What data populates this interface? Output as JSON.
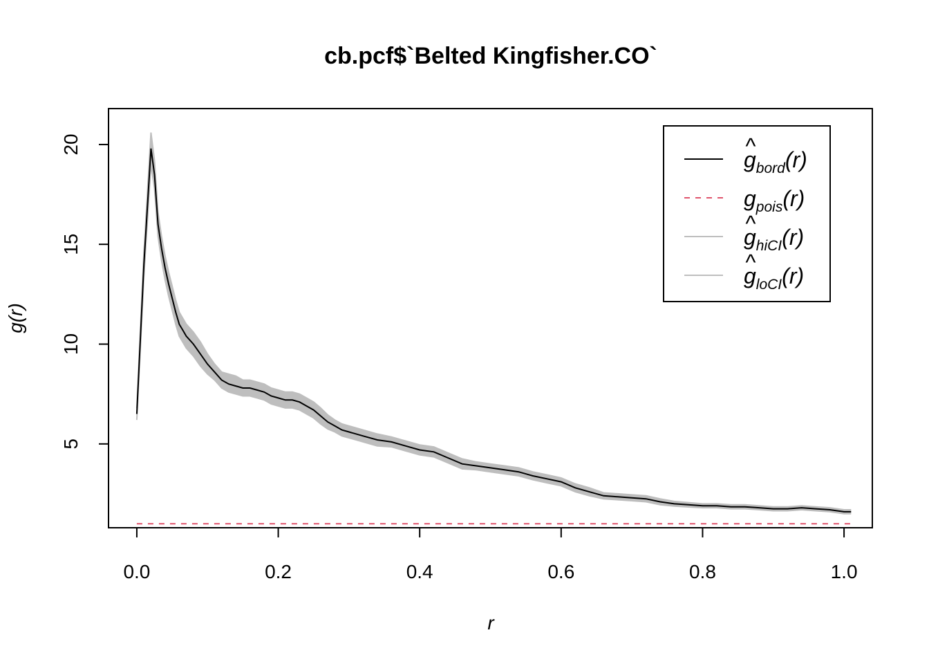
{
  "chart_data": {
    "type": "line",
    "title": "cb.pcf$`Belted Kingfisher.CO`",
    "xlabel": "r",
    "ylabel": "g(r)",
    "xlim": [
      -0.04,
      1.04
    ],
    "ylim": [
      0.8,
      21.8
    ],
    "x_ticks": [
      0.0,
      0.2,
      0.4,
      0.6,
      0.8,
      1.0
    ],
    "x_tick_labels": [
      "0.0",
      "0.2",
      "0.4",
      "0.6",
      "0.8",
      "1.0"
    ],
    "y_ticks": [
      5,
      10,
      15,
      20
    ],
    "y_tick_labels": [
      "5",
      "10",
      "15",
      "20"
    ],
    "grid": false,
    "legend_position": "top-right",
    "legend": [
      {
        "symbol": "g",
        "hat": true,
        "subscript": "bord",
        "arg": "(r)",
        "color": "#000000",
        "dash": "solid"
      },
      {
        "symbol": "g",
        "hat": false,
        "subscript": "pois",
        "arg": "(r)",
        "color": "#DF536B",
        "dash": "dashed"
      },
      {
        "symbol": "g",
        "hat": true,
        "subscript": "hiCI",
        "arg": "(r)",
        "color": "#BEBEBE",
        "dash": "solid"
      },
      {
        "symbol": "g",
        "hat": true,
        "subscript": "loCI",
        "arg": "(r)",
        "color": "#BEBEBE",
        "dash": "solid"
      }
    ],
    "band_color": "#BEBEBE",
    "series": [
      {
        "name": "bord",
        "color": "#000000",
        "x": [
          0.0,
          0.01,
          0.02,
          0.025,
          0.03,
          0.035,
          0.04,
          0.045,
          0.05,
          0.055,
          0.06,
          0.065,
          0.07,
          0.08,
          0.09,
          0.1,
          0.11,
          0.12,
          0.13,
          0.14,
          0.15,
          0.16,
          0.17,
          0.18,
          0.19,
          0.2,
          0.21,
          0.22,
          0.23,
          0.24,
          0.25,
          0.26,
          0.27,
          0.28,
          0.29,
          0.3,
          0.32,
          0.34,
          0.36,
          0.38,
          0.4,
          0.42,
          0.44,
          0.46,
          0.48,
          0.5,
          0.52,
          0.54,
          0.56,
          0.58,
          0.6,
          0.62,
          0.64,
          0.66,
          0.68,
          0.7,
          0.72,
          0.74,
          0.76,
          0.78,
          0.8,
          0.82,
          0.84,
          0.86,
          0.88,
          0.9,
          0.92,
          0.94,
          0.96,
          0.98,
          1.0,
          1.01
        ],
        "values": [
          6.5,
          14.0,
          19.8,
          18.5,
          16.0,
          14.8,
          13.8,
          13.0,
          12.3,
          11.6,
          11.0,
          10.7,
          10.4,
          10.0,
          9.5,
          9.0,
          8.6,
          8.2,
          8.0,
          7.9,
          7.8,
          7.8,
          7.7,
          7.6,
          7.4,
          7.3,
          7.2,
          7.2,
          7.1,
          6.9,
          6.7,
          6.4,
          6.1,
          5.9,
          5.7,
          5.6,
          5.4,
          5.2,
          5.1,
          4.9,
          4.7,
          4.6,
          4.3,
          4.0,
          3.9,
          3.8,
          3.7,
          3.6,
          3.4,
          3.25,
          3.1,
          2.8,
          2.6,
          2.4,
          2.35,
          2.3,
          2.25,
          2.1,
          2.0,
          1.95,
          1.9,
          1.9,
          1.85,
          1.85,
          1.8,
          1.75,
          1.75,
          1.8,
          1.75,
          1.7,
          1.6,
          1.6
        ]
      },
      {
        "name": "pois",
        "color": "#DF536B",
        "x": [
          0.0,
          1.01
        ],
        "values": [
          1.0,
          1.0
        ]
      },
      {
        "name": "hiCI",
        "color": "#BEBEBE",
        "x": [
          0.0,
          0.01,
          0.02,
          0.025,
          0.03,
          0.035,
          0.04,
          0.045,
          0.05,
          0.055,
          0.06,
          0.065,
          0.07,
          0.08,
          0.09,
          0.1,
          0.11,
          0.12,
          0.13,
          0.14,
          0.15,
          0.16,
          0.17,
          0.18,
          0.19,
          0.2,
          0.21,
          0.22,
          0.23,
          0.24,
          0.25,
          0.26,
          0.27,
          0.28,
          0.29,
          0.3,
          0.32,
          0.34,
          0.36,
          0.38,
          0.4,
          0.42,
          0.44,
          0.46,
          0.48,
          0.5,
          0.52,
          0.54,
          0.56,
          0.58,
          0.6,
          0.62,
          0.64,
          0.66,
          0.68,
          0.7,
          0.72,
          0.74,
          0.76,
          0.78,
          0.8,
          0.82,
          0.84,
          0.86,
          0.88,
          0.9,
          0.92,
          0.94,
          0.96,
          0.98,
          1.0,
          1.01
        ],
        "values": [
          6.8,
          14.6,
          20.6,
          19.2,
          16.6,
          15.4,
          14.4,
          13.6,
          12.9,
          12.2,
          11.6,
          11.3,
          11.0,
          10.6,
          10.1,
          9.5,
          9.0,
          8.6,
          8.5,
          8.4,
          8.2,
          8.2,
          8.1,
          8.0,
          7.8,
          7.7,
          7.6,
          7.6,
          7.5,
          7.3,
          7.1,
          6.8,
          6.45,
          6.2,
          6.0,
          5.9,
          5.7,
          5.5,
          5.35,
          5.15,
          4.95,
          4.85,
          4.55,
          4.25,
          4.1,
          4.0,
          3.9,
          3.8,
          3.6,
          3.45,
          3.3,
          3.0,
          2.8,
          2.55,
          2.5,
          2.45,
          2.4,
          2.25,
          2.12,
          2.06,
          2.0,
          2.0,
          1.95,
          1.95,
          1.9,
          1.85,
          1.85,
          1.9,
          1.85,
          1.8,
          1.7,
          1.7
        ]
      },
      {
        "name": "loCI",
        "color": "#BEBEBE",
        "x": [
          0.0,
          0.01,
          0.02,
          0.025,
          0.03,
          0.035,
          0.04,
          0.045,
          0.05,
          0.055,
          0.06,
          0.065,
          0.07,
          0.08,
          0.09,
          0.1,
          0.11,
          0.12,
          0.13,
          0.14,
          0.15,
          0.16,
          0.17,
          0.18,
          0.19,
          0.2,
          0.21,
          0.22,
          0.23,
          0.24,
          0.25,
          0.26,
          0.27,
          0.28,
          0.29,
          0.3,
          0.32,
          0.34,
          0.36,
          0.38,
          0.4,
          0.42,
          0.44,
          0.46,
          0.48,
          0.5,
          0.52,
          0.54,
          0.56,
          0.58,
          0.6,
          0.62,
          0.64,
          0.66,
          0.68,
          0.7,
          0.72,
          0.74,
          0.76,
          0.78,
          0.8,
          0.82,
          0.84,
          0.86,
          0.88,
          0.9,
          0.92,
          0.94,
          0.96,
          0.98,
          1.0,
          1.01
        ],
        "values": [
          6.2,
          13.4,
          19.0,
          17.8,
          15.4,
          14.2,
          13.2,
          12.4,
          11.7,
          11.0,
          10.4,
          10.1,
          9.8,
          9.4,
          8.9,
          8.5,
          8.2,
          7.8,
          7.6,
          7.5,
          7.4,
          7.4,
          7.3,
          7.2,
          7.0,
          6.9,
          6.8,
          6.8,
          6.7,
          6.5,
          6.3,
          6.0,
          5.75,
          5.6,
          5.4,
          5.3,
          5.1,
          4.9,
          4.85,
          4.65,
          4.45,
          4.35,
          4.05,
          3.75,
          3.7,
          3.6,
          3.5,
          3.4,
          3.2,
          3.05,
          2.9,
          2.6,
          2.4,
          2.25,
          2.2,
          2.15,
          2.1,
          1.95,
          1.88,
          1.84,
          1.8,
          1.8,
          1.75,
          1.75,
          1.7,
          1.65,
          1.65,
          1.7,
          1.65,
          1.6,
          1.5,
          1.5
        ]
      }
    ]
  }
}
